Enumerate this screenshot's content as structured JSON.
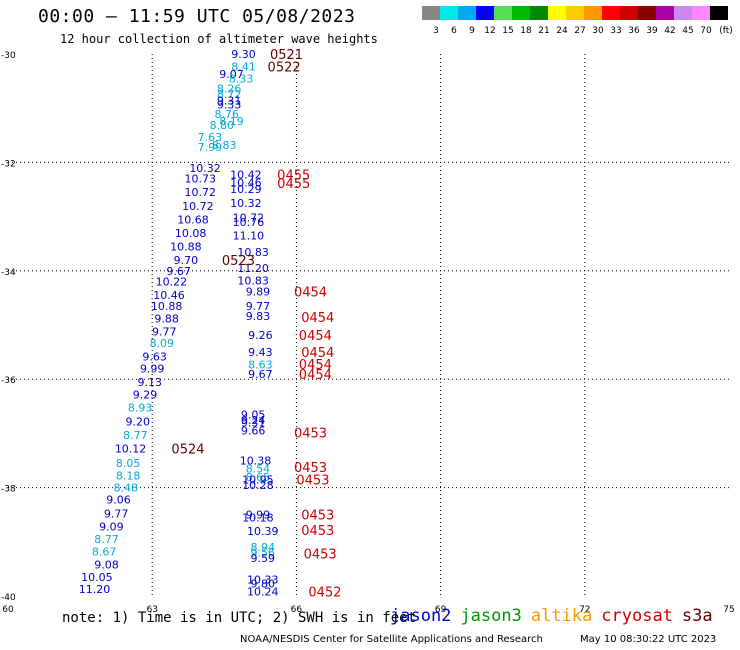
{
  "title": "00:00 — 11:59 UTC 05/08/2023",
  "subtitle": "12 hour collection of altimeter wave heights",
  "note": "note: 1) Time is in UTC; 2) SWH is in feet",
  "footer_credit": "NOAA/NESDIS Center for Satellite Applications and Research",
  "footer_time": "May 10 08:30:22 UTC 2023",
  "legend": [
    {
      "name": "jason2",
      "color": "#0000cc"
    },
    {
      "name": "jason3",
      "color": "#009900"
    },
    {
      "name": "altika",
      "color": "#ff9900"
    },
    {
      "name": "cryosat",
      "color": "#cc0000"
    },
    {
      "name": "s3a",
      "color": "#660000"
    }
  ],
  "colorbar": {
    "labels": [
      "3",
      "6",
      "9",
      "12",
      "15",
      "18",
      "21",
      "24",
      "27",
      "30",
      "33",
      "36",
      "39",
      "42",
      "45",
      "70",
      "(ft)"
    ],
    "colors": [
      "#888888",
      "#00e8e8",
      "#00aaee",
      "#0000ff",
      "#55dd55",
      "#00bb00",
      "#008800",
      "#ffff00",
      "#ffcc00",
      "#ff9900",
      "#ff0000",
      "#cc0000",
      "#880000",
      "#aa00aa",
      "#cc88ee",
      "#ff88ff",
      "#000000"
    ]
  },
  "chart_data": {
    "type": "scatter",
    "title": "00:00 — 11:59 UTC 05/08/2023",
    "xlim": [
      60,
      75
    ],
    "ylim": [
      -40,
      -30
    ],
    "x_ticks": [
      "60",
      "63",
      "66",
      "69",
      "72",
      "75"
    ],
    "y_ticks": [
      "-30",
      "-32",
      "-34",
      "-36",
      "-38",
      "-40"
    ],
    "grid": true,
    "swh_points": [
      {
        "lon": 64.9,
        "lat": -30.0,
        "label": "9.30",
        "color": "#0000cc"
      },
      {
        "lon": 64.9,
        "lat": -30.23,
        "label": "8.41",
        "color": "#00aadd"
      },
      {
        "lon": 64.65,
        "lat": -30.37,
        "label": "9.07",
        "color": "#0000cc"
      },
      {
        "lon": 64.85,
        "lat": -30.45,
        "label": "8.33",
        "color": "#00aadd"
      },
      {
        "lon": 64.6,
        "lat": -30.64,
        "label": "8.26",
        "color": "#00aadd"
      },
      {
        "lon": 64.6,
        "lat": -30.74,
        "label": "8.72",
        "color": "#00aadd"
      },
      {
        "lon": 64.6,
        "lat": -30.86,
        "label": "9.31",
        "color": "#0000cc"
      },
      {
        "lon": 64.6,
        "lat": -30.93,
        "label": "9.33",
        "color": "#0000cc"
      },
      {
        "lon": 64.55,
        "lat": -31.11,
        "label": "8.76",
        "color": "#00aadd"
      },
      {
        "lon": 64.65,
        "lat": -31.24,
        "label": "8.19",
        "color": "#00aadd"
      },
      {
        "lon": 64.45,
        "lat": -31.31,
        "label": "8.80",
        "color": "#00aadd"
      },
      {
        "lon": 64.2,
        "lat": -31.53,
        "label": "7.63",
        "color": "#00aadd"
      },
      {
        "lon": 64.5,
        "lat": -31.68,
        "label": "8.83",
        "color": "#00aadd"
      },
      {
        "lon": 64.2,
        "lat": -31.72,
        "label": "7.99",
        "color": "#00aadd"
      },
      {
        "lon": 64.1,
        "lat": -32.1,
        "label": "10.32",
        "color": "#0000cc"
      },
      {
        "lon": 64.95,
        "lat": -32.22,
        "label": "10.42",
        "color": "#0000cc"
      },
      {
        "lon": 64.0,
        "lat": -32.3,
        "label": "10.73",
        "color": "#0000cc"
      },
      {
        "lon": 64.95,
        "lat": -32.37,
        "label": "10.46",
        "color": "#0000cc"
      },
      {
        "lon": 64.0,
        "lat": -32.55,
        "label": "10.72",
        "color": "#0000cc"
      },
      {
        "lon": 64.95,
        "lat": -32.49,
        "label": "10.29",
        "color": "#0000cc"
      },
      {
        "lon": 64.95,
        "lat": -32.75,
        "label": "10.32",
        "color": "#0000cc"
      },
      {
        "lon": 63.95,
        "lat": -32.8,
        "label": "10.72",
        "color": "#0000cc"
      },
      {
        "lon": 63.85,
        "lat": -33.05,
        "label": "10.68",
        "color": "#0000cc"
      },
      {
        "lon": 65.0,
        "lat": -33.02,
        "label": "10.72",
        "color": "#0000cc"
      },
      {
        "lon": 65.0,
        "lat": -33.1,
        "label": "10.76",
        "color": "#0000cc"
      },
      {
        "lon": 63.8,
        "lat": -33.3,
        "label": "10.08",
        "color": "#0000cc"
      },
      {
        "lon": 65.0,
        "lat": -33.35,
        "label": "11.10",
        "color": "#0000cc"
      },
      {
        "lon": 63.7,
        "lat": -33.55,
        "label": "10.88",
        "color": "#0000cc"
      },
      {
        "lon": 65.1,
        "lat": -33.65,
        "label": "10.83",
        "color": "#0000cc"
      },
      {
        "lon": 63.7,
        "lat": -33.8,
        "label": "9.70",
        "color": "#0000cc"
      },
      {
        "lon": 65.1,
        "lat": -33.95,
        "label": "11.20",
        "color": "#0000cc"
      },
      {
        "lon": 63.55,
        "lat": -34.0,
        "label": "9.67",
        "color": "#0000cc"
      },
      {
        "lon": 65.1,
        "lat": -34.18,
        "label": "10.83",
        "color": "#0000cc"
      },
      {
        "lon": 63.4,
        "lat": -34.2,
        "label": "10.22",
        "color": "#0000cc"
      },
      {
        "lon": 65.2,
        "lat": -34.38,
        "label": "9.89",
        "color": "#0000cc"
      },
      {
        "lon": 63.35,
        "lat": -34.45,
        "label": "10.46",
        "color": "#0000cc"
      },
      {
        "lon": 63.3,
        "lat": -34.65,
        "label": "10.88",
        "color": "#0000cc"
      },
      {
        "lon": 65.2,
        "lat": -34.65,
        "label": "9.77",
        "color": "#0000cc"
      },
      {
        "lon": 63.3,
        "lat": -34.88,
        "label": "9.88",
        "color": "#0000cc"
      },
      {
        "lon": 65.2,
        "lat": -34.83,
        "label": "9.83",
        "color": "#0000cc"
      },
      {
        "lon": 63.25,
        "lat": -35.12,
        "label": "9.77",
        "color": "#0000cc"
      },
      {
        "lon": 65.25,
        "lat": -35.18,
        "label": "9.26",
        "color": "#0000cc"
      },
      {
        "lon": 63.2,
        "lat": -35.33,
        "label": "8.09",
        "color": "#00aadd"
      },
      {
        "lon": 63.05,
        "lat": -35.58,
        "label": "9.63",
        "color": "#0000cc"
      },
      {
        "lon": 65.25,
        "lat": -35.5,
        "label": "9.43",
        "color": "#0000cc"
      },
      {
        "lon": 65.25,
        "lat": -35.73,
        "label": "8.63",
        "color": "#00aadd"
      },
      {
        "lon": 63.0,
        "lat": -35.8,
        "label": "9.99",
        "color": "#0000cc"
      },
      {
        "lon": 65.25,
        "lat": -35.9,
        "label": "9.67",
        "color": "#0000cc"
      },
      {
        "lon": 62.95,
        "lat": -36.05,
        "label": "9.13",
        "color": "#0000cc"
      },
      {
        "lon": 62.85,
        "lat": -36.28,
        "label": "9.29",
        "color": "#0000cc"
      },
      {
        "lon": 62.75,
        "lat": -36.52,
        "label": "8.93",
        "color": "#00aadd"
      },
      {
        "lon": 65.1,
        "lat": -36.65,
        "label": "9.05",
        "color": "#0000cc"
      },
      {
        "lon": 65.1,
        "lat": -36.75,
        "label": "9.24",
        "color": "#0000cc"
      },
      {
        "lon": 65.1,
        "lat": -36.8,
        "label": "9.31",
        "color": "#0000cc"
      },
      {
        "lon": 62.7,
        "lat": -36.78,
        "label": "9.20",
        "color": "#0000cc"
      },
      {
        "lon": 65.1,
        "lat": -36.95,
        "label": "9.66",
        "color": "#0000cc"
      },
      {
        "lon": 62.65,
        "lat": -37.03,
        "label": "8.77",
        "color": "#00aadd"
      },
      {
        "lon": 62.55,
        "lat": -37.28,
        "label": "10.12",
        "color": "#0000cc"
      },
      {
        "lon": 65.15,
        "lat": -37.5,
        "label": "10.38",
        "color": "#0000cc"
      },
      {
        "lon": 62.5,
        "lat": -37.55,
        "label": "8.05",
        "color": "#00aadd"
      },
      {
        "lon": 65.2,
        "lat": -37.65,
        "label": "8.54",
        "color": "#00aadd"
      },
      {
        "lon": 65.2,
        "lat": -37.8,
        "label": "8.65",
        "color": "#00aadd"
      },
      {
        "lon": 62.5,
        "lat": -37.78,
        "label": "8.18",
        "color": "#00aadd"
      },
      {
        "lon": 65.2,
        "lat": -37.85,
        "label": "10.95",
        "color": "#0000cc"
      },
      {
        "lon": 65.2,
        "lat": -37.95,
        "label": "10.28",
        "color": "#0000cc"
      },
      {
        "lon": 62.45,
        "lat": -38.0,
        "label": "8.48",
        "color": "#00aadd"
      },
      {
        "lon": 62.3,
        "lat": -38.22,
        "label": "9.06",
        "color": "#0000cc"
      },
      {
        "lon": 65.2,
        "lat": -38.5,
        "label": "9.99",
        "color": "#0000cc"
      },
      {
        "lon": 65.2,
        "lat": -38.55,
        "label": "10.18",
        "color": "#0000cc"
      },
      {
        "lon": 62.25,
        "lat": -38.48,
        "label": "9.77",
        "color": "#0000cc"
      },
      {
        "lon": 62.15,
        "lat": -38.72,
        "label": "9.09",
        "color": "#0000cc"
      },
      {
        "lon": 65.3,
        "lat": -38.8,
        "label": "10.39",
        "color": "#0000cc"
      },
      {
        "lon": 62.05,
        "lat": -38.95,
        "label": "8.77",
        "color": "#00aadd"
      },
      {
        "lon": 65.3,
        "lat": -39.1,
        "label": "8.94",
        "color": "#00aadd"
      },
      {
        "lon": 62.0,
        "lat": -39.18,
        "label": "8.67",
        "color": "#00aadd"
      },
      {
        "lon": 65.3,
        "lat": -39.2,
        "label": "9.56",
        "color": "#00aadd"
      },
      {
        "lon": 65.3,
        "lat": -39.3,
        "label": "9.59",
        "color": "#0000cc"
      },
      {
        "lon": 62.05,
        "lat": -39.42,
        "label": "9.08",
        "color": "#0000cc"
      },
      {
        "lon": 61.85,
        "lat": -39.65,
        "label": "10.05",
        "color": "#0000cc"
      },
      {
        "lon": 65.3,
        "lat": -39.7,
        "label": "10.33",
        "color": "#0000cc"
      },
      {
        "lon": 65.3,
        "lat": -39.77,
        "label": "9.80",
        "color": "#0000cc"
      },
      {
        "lon": 61.8,
        "lat": -39.87,
        "label": "11.20",
        "color": "#0000cc"
      },
      {
        "lon": 65.3,
        "lat": -39.92,
        "label": "10.24",
        "color": "#0000cc"
      }
    ],
    "time_labels": [
      {
        "lon": 65.45,
        "lat": -30.0,
        "label": "0521",
        "color": "#660000"
      },
      {
        "lon": 65.4,
        "lat": -30.23,
        "label": "0522",
        "color": "#660000"
      },
      {
        "lon": 65.6,
        "lat": -32.22,
        "label": "0455",
        "color": "#cc0000"
      },
      {
        "lon": 65.6,
        "lat": -32.38,
        "label": "0455",
        "color": "#cc0000"
      },
      {
        "lon": 64.45,
        "lat": -33.8,
        "label": "0523",
        "color": "#660000"
      },
      {
        "lon": 65.95,
        "lat": -34.38,
        "label": "0454",
        "color": "#cc0000"
      },
      {
        "lon": 66.1,
        "lat": -34.85,
        "label": "0454",
        "color": "#cc0000"
      },
      {
        "lon": 66.05,
        "lat": -35.18,
        "label": "0454",
        "color": "#cc0000"
      },
      {
        "lon": 66.1,
        "lat": -35.5,
        "label": "0454",
        "color": "#cc0000"
      },
      {
        "lon": 66.05,
        "lat": -35.72,
        "label": "0454",
        "color": "#cc0000"
      },
      {
        "lon": 66.05,
        "lat": -35.9,
        "label": "0454",
        "color": "#cc0000"
      },
      {
        "lon": 63.4,
        "lat": -37.28,
        "label": "0524",
        "color": "#660000"
      },
      {
        "lon": 65.95,
        "lat": -36.98,
        "label": "0453",
        "color": "#cc0000"
      },
      {
        "lon": 65.95,
        "lat": -37.62,
        "label": "0453",
        "color": "#cc0000"
      },
      {
        "lon": 66.0,
        "lat": -37.85,
        "label": "0453",
        "color": "#cc0000"
      },
      {
        "lon": 66.1,
        "lat": -38.5,
        "label": "0453",
        "color": "#cc0000"
      },
      {
        "lon": 66.1,
        "lat": -38.78,
        "label": "0453",
        "color": "#cc0000"
      },
      {
        "lon": 66.15,
        "lat": -39.22,
        "label": "0453",
        "color": "#cc0000"
      },
      {
        "lon": 66.25,
        "lat": -39.92,
        "label": "0452",
        "color": "#cc0000"
      }
    ]
  }
}
